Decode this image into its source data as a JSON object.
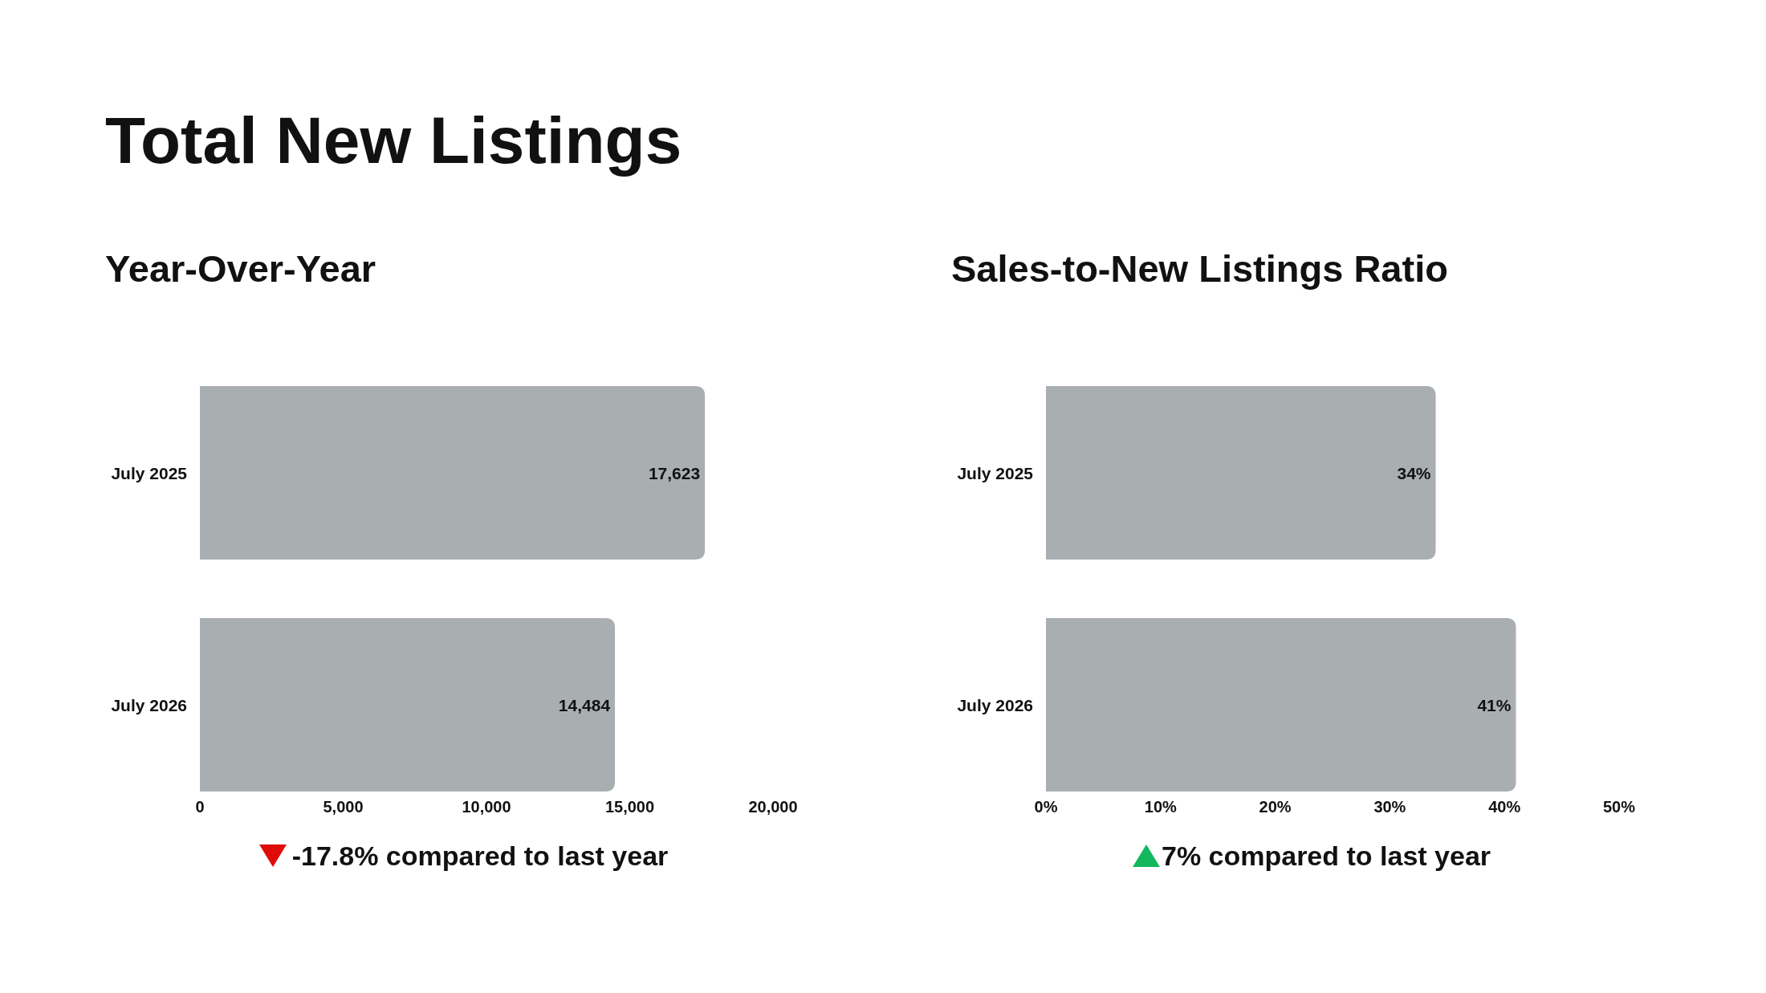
{
  "chart_data": [
    {
      "type": "bar",
      "orientation": "horizontal",
      "title": "Total New Listings",
      "subtitle": "Year-Over-Year",
      "categories": [
        "July 2025",
        "July 2026"
      ],
      "values": [
        17623,
        14484
      ],
      "value_labels": [
        "17,623",
        "14,484"
      ],
      "color": "#a9aeb1",
      "xlim": [
        0,
        20000
      ],
      "xticks": [
        {
          "value": 0,
          "label": "0"
        },
        {
          "value": 5000,
          "label": "5,000"
        },
        {
          "value": 10000,
          "label": "10,000"
        },
        {
          "value": 15000,
          "label": "15,000"
        },
        {
          "value": 20000,
          "label": "20,000"
        }
      ],
      "grid": false,
      "annotations": [
        "-17.8% compared to last year"
      ]
    },
    {
      "type": "bar",
      "orientation": "horizontal",
      "title": "Sales-to-New Listings Ratio",
      "categories": [
        "July 2025",
        "July 2026"
      ],
      "values": [
        34,
        41
      ],
      "value_labels": [
        "34%",
        "41%"
      ],
      "color": "#a9aeb1",
      "xlim": [
        0,
        50
      ],
      "xticks": [
        {
          "value": 0,
          "label": "0%"
        },
        {
          "value": 10,
          "label": "10%"
        },
        {
          "value": 20,
          "label": "20%"
        },
        {
          "value": 30,
          "label": "30%"
        },
        {
          "value": 40,
          "label": "40%"
        },
        {
          "value": 50,
          "label": "50%"
        }
      ],
      "grid": false,
      "annotations": [
        "7% compared to last year"
      ]
    }
  ]
}
